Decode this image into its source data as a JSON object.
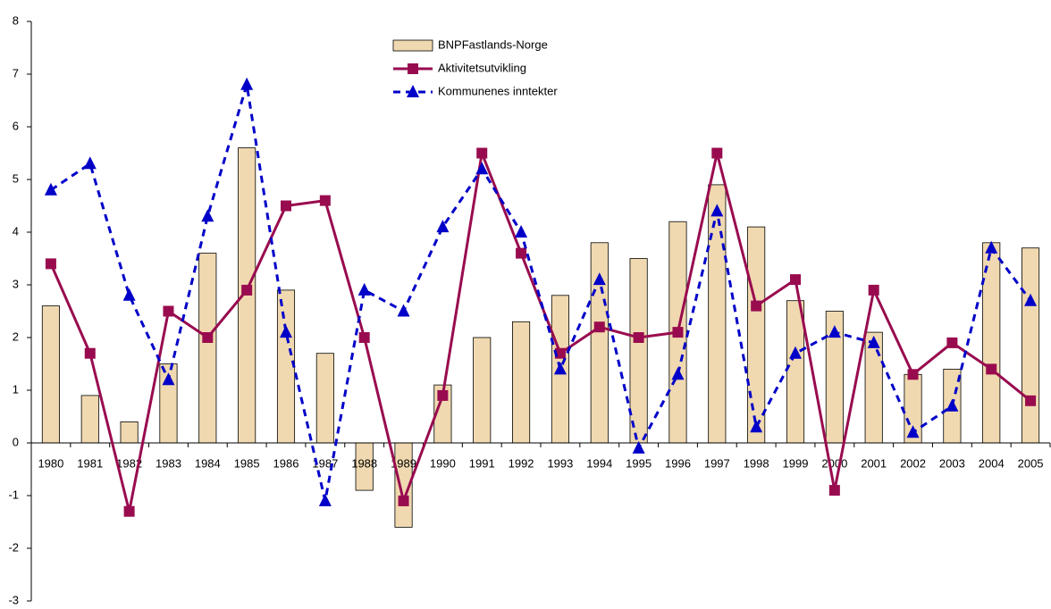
{
  "chart_data": {
    "type": "bar-line",
    "categories": [
      "1980",
      "1981",
      "1982",
      "1983",
      "1984",
      "1985",
      "1986",
      "1987",
      "1988",
      "1989",
      "1990",
      "1991",
      "1992",
      "1993",
      "1994",
      "1995",
      "1996",
      "1997",
      "1998",
      "1999",
      "2000",
      "2001",
      "2002",
      "2003",
      "2004",
      "2005"
    ],
    "series": [
      {
        "name": "BNPFastlands-Norge",
        "type": "bar",
        "color": "#f0d9b0",
        "values": [
          2.6,
          0.9,
          0.4,
          1.5,
          3.6,
          5.6,
          2.9,
          1.7,
          -0.9,
          -1.6,
          1.1,
          2.0,
          2.3,
          2.8,
          3.8,
          3.5,
          4.2,
          4.9,
          4.1,
          2.7,
          2.5,
          2.1,
          1.3,
          1.4,
          3.8,
          3.7
        ]
      },
      {
        "name": "Aktivitetsutvikling",
        "type": "line",
        "color": "#990b4f",
        "marker": "square",
        "values": [
          3.4,
          1.7,
          -1.3,
          2.5,
          2.0,
          2.9,
          4.5,
          4.6,
          2.0,
          -1.1,
          0.9,
          5.5,
          3.6,
          1.7,
          2.2,
          2.0,
          2.1,
          5.5,
          2.6,
          3.1,
          -0.9,
          2.9,
          1.3,
          1.9,
          1.4,
          0.8
        ]
      },
      {
        "name": "Kommunenes inntekter",
        "type": "line",
        "dashed": true,
        "color": "#0000c8",
        "marker": "triangle",
        "values": [
          4.8,
          5.3,
          2.8,
          1.2,
          4.3,
          6.8,
          2.1,
          -1.1,
          2.9,
          2.5,
          4.1,
          5.2,
          4.0,
          1.4,
          3.1,
          -0.1,
          1.3,
          4.4,
          0.3,
          1.7,
          2.1,
          1.9,
          0.2,
          0.7,
          3.7,
          2.7
        ]
      }
    ],
    "ylim": [
      -3,
      8
    ],
    "yticks": [
      -3,
      -2,
      -1,
      0,
      1,
      2,
      3,
      4,
      5,
      6,
      7,
      8
    ],
    "grid": false,
    "legend": "top-center"
  }
}
